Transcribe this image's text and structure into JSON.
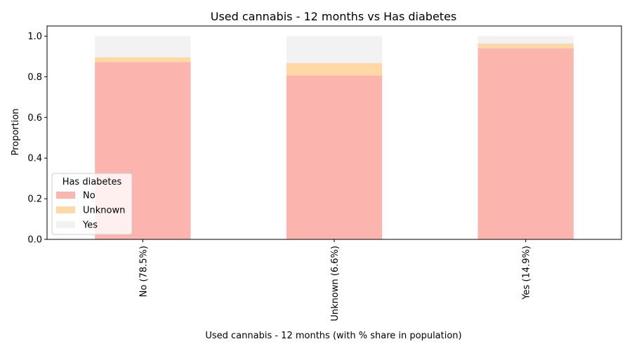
{
  "chart_data": {
    "type": "bar",
    "stacked": true,
    "title": "Used cannabis - 12 months vs Has diabetes",
    "xlabel": "Used cannabis - 12 months (with % share in population)",
    "ylabel": "Proportion",
    "ylim": [
      0,
      1.05
    ],
    "yticks": [
      "0.0",
      "0.2",
      "0.4",
      "0.6",
      "0.8",
      "1.0"
    ],
    "categories": [
      "No (78.5%)",
      "Unknown (6.6%)",
      "Yes (14.9%)"
    ],
    "series": [
      {
        "name": "No",
        "color": "#fbb4ae",
        "values": [
          0.872,
          0.807,
          0.94
        ]
      },
      {
        "name": "Unknown",
        "color": "#fed9a6",
        "values": [
          0.024,
          0.06,
          0.024
        ]
      },
      {
        "name": "Yes",
        "color": "#f2f2f2",
        "values": [
          0.104,
          0.133,
          0.036
        ]
      }
    ],
    "legend": {
      "title": "Has diabetes",
      "placement": "lower-left"
    },
    "grid": false
  }
}
